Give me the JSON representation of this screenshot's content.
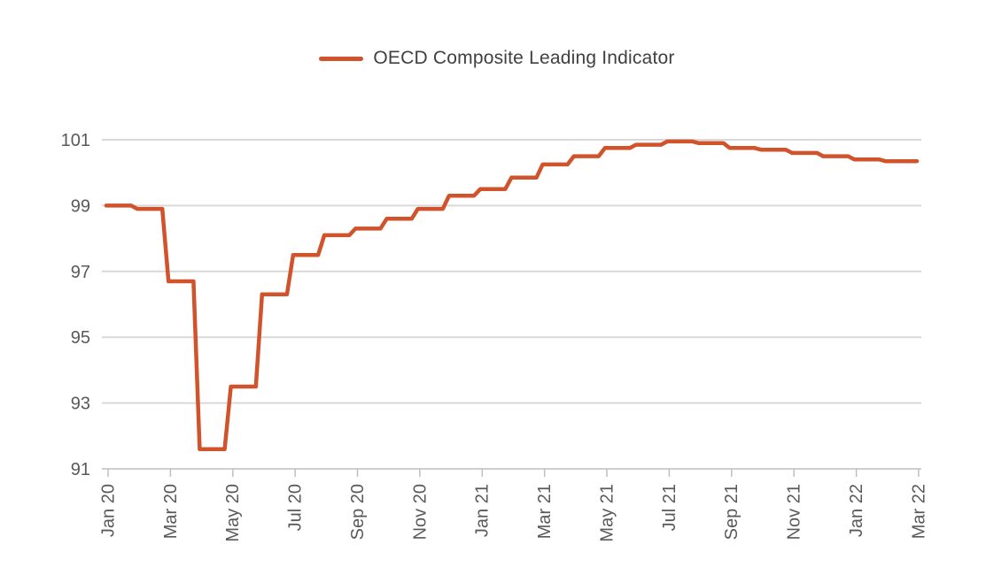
{
  "chart_data": {
    "type": "line",
    "style": "stepped",
    "title": "",
    "legend_position": "top-center",
    "grid": "horizontal",
    "x": [
      "Jan 20",
      "Feb 20",
      "Mar 20",
      "Apr 20",
      "May 20",
      "Jun 20",
      "Jul 20",
      "Aug 20",
      "Sep 20",
      "Oct 20",
      "Nov 20",
      "Dec 20",
      "Jan 21",
      "Feb 21",
      "Mar 21",
      "Apr 21",
      "May 21",
      "Jun 21",
      "Jul 21",
      "Aug 21",
      "Sep 21",
      "Oct 21",
      "Nov 21",
      "Dec 21",
      "Jan 22",
      "Feb 22",
      "Mar 22"
    ],
    "series": [
      {
        "name": "OECD Composite Leading Indicator",
        "values": [
          99.0,
          98.9,
          96.7,
          91.6,
          93.5,
          96.3,
          97.5,
          98.1,
          98.3,
          98.6,
          98.9,
          99.3,
          99.5,
          99.85,
          100.25,
          100.5,
          100.75,
          100.85,
          100.95,
          100.9,
          100.75,
          100.7,
          100.6,
          100.5,
          100.4,
          100.35,
          100.35
        ]
      }
    ],
    "x_tick_labels": [
      "Jan 20",
      "Mar 20",
      "May 20",
      "Jul 20",
      "Sep 20",
      "Nov 20",
      "Jan 21",
      "Mar 21",
      "May 21",
      "Jul 21",
      "Sep 21",
      "Nov 21",
      "Jan 22",
      "Mar 22"
    ],
    "y_ticks": [
      91,
      93,
      95,
      97,
      99,
      101
    ],
    "y_tick_labels": [
      "91",
      "93",
      "95",
      "97",
      "99",
      "101"
    ],
    "ylim": [
      91,
      101.3
    ],
    "xlabel": "",
    "ylabel": ""
  },
  "colors": {
    "line": "#d0532b",
    "gridline": "#d9d9d9",
    "axis": "#bfbfbf",
    "tick_label": "#595959",
    "legend_text": "#404040",
    "background": "#ffffff"
  }
}
